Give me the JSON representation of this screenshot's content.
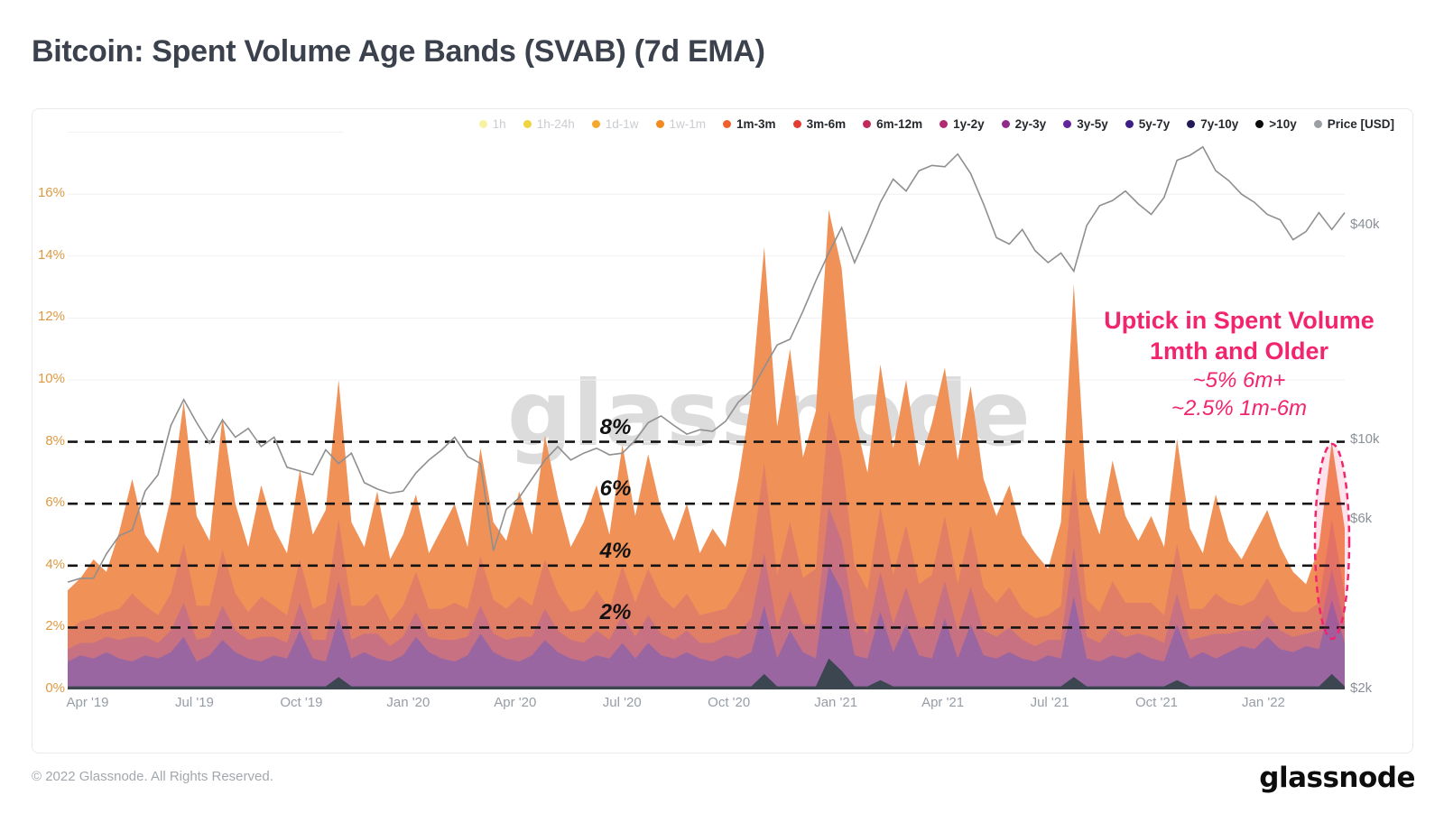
{
  "title": "Bitcoin: Spent Volume Age Bands (SVAB) (7d EMA)",
  "watermark": "glassnode",
  "footer": {
    "copyright": "© 2022 Glassnode. All Rights Reserved.",
    "brand": "glassnode"
  },
  "annotation": {
    "color": "#F2246E",
    "line1": "Uptick in Spent Volume",
    "line2": "1mth and Older",
    "line3": "~5% 6m+",
    "line4": "~2.5% 1m-6m"
  },
  "inline_labels": [
    "8%",
    "6%",
    "4%",
    "2%"
  ],
  "legend": {
    "items": [
      {
        "label": "1h",
        "color": "#F7F2A0",
        "active": false
      },
      {
        "label": "1h-24h",
        "color": "#EFD440",
        "active": false
      },
      {
        "label": "1d-1w",
        "color": "#F4A82C",
        "active": false
      },
      {
        "label": "1w-1m",
        "color": "#F28A20",
        "active": false
      },
      {
        "label": "1m-3m",
        "color": "#EF5F2D",
        "active": true
      },
      {
        "label": "3m-6m",
        "color": "#E23D33",
        "active": true
      },
      {
        "label": "6m-12m",
        "color": "#C12A58",
        "active": true
      },
      {
        "label": "1y-2y",
        "color": "#B02C72",
        "active": true
      },
      {
        "label": "2y-3y",
        "color": "#8F2C87",
        "active": true
      },
      {
        "label": "3y-5y",
        "color": "#66249B",
        "active": true
      },
      {
        "label": "5y-7y",
        "color": "#3D1D86",
        "active": true
      },
      {
        "label": "7y-10y",
        "color": "#201A55",
        "active": true
      },
      {
        "label": ">10y",
        "color": "#0B0B0B",
        "active": true
      },
      {
        "label": "Price [USD]",
        "color": "#9B9FA3",
        "active": true
      }
    ]
  },
  "chart_data": {
    "type": "area",
    "stacked": true,
    "title": "Bitcoin: Spent Volume Age Bands (SVAB) (7d EMA)",
    "x_tick_labels": [
      "Apr '19",
      "Jul '19",
      "Oct '19",
      "Jan '20",
      "Apr '20",
      "Jul '20",
      "Oct '20",
      "Jan '21",
      "Apr '21",
      "Jul '21",
      "Oct '21",
      "Jan '22"
    ],
    "x_range": [
      "Mar 2019",
      "Mar 2022"
    ],
    "samples": 100,
    "y_left": {
      "unit": "%",
      "range": [
        0,
        18
      ],
      "tick_labels": [
        "0%",
        "2%",
        "4%",
        "6%",
        "8%",
        "10%",
        "12%",
        "14%",
        "16%"
      ],
      "grid": true
    },
    "y_right": {
      "unit": "USD",
      "scale": "log",
      "ticks": [
        {
          "label": "$40k",
          "usd_k": 40
        },
        {
          "label": "$10k",
          "usd_k": 10
        },
        {
          "label": "$6k",
          "usd_k": 6
        },
        {
          "label": "$2k",
          "usd_k": 2
        }
      ]
    },
    "reference_lines_pct": [
      8,
      6,
      4,
      2
    ],
    "series": [
      {
        "name": "7y-10y / >10y",
        "color": "#3C4650",
        "values": [
          0.1,
          0.1,
          0.1,
          0.1,
          0.1,
          0.1,
          0.1,
          0.1,
          0.1,
          0.1,
          0.1,
          0.1,
          0.1,
          0.1,
          0.1,
          0.1,
          0.1,
          0.1,
          0.1,
          0.1,
          0.1,
          0.4,
          0.1,
          0.1,
          0.1,
          0.1,
          0.1,
          0.1,
          0.1,
          0.1,
          0.1,
          0.1,
          0.1,
          0.1,
          0.1,
          0.1,
          0.1,
          0.1,
          0.1,
          0.1,
          0.1,
          0.1,
          0.1,
          0.1,
          0.1,
          0.1,
          0.1,
          0.1,
          0.1,
          0.1,
          0.1,
          0.1,
          0.1,
          0.1,
          0.5,
          0.1,
          0.1,
          0.1,
          0.1,
          1.0,
          0.6,
          0.1,
          0.1,
          0.3,
          0.1,
          0.1,
          0.1,
          0.1,
          0.1,
          0.1,
          0.1,
          0.1,
          0.1,
          0.1,
          0.1,
          0.1,
          0.1,
          0.1,
          0.4,
          0.1,
          0.1,
          0.1,
          0.1,
          0.1,
          0.1,
          0.1,
          0.3,
          0.1,
          0.1,
          0.1,
          0.1,
          0.1,
          0.1,
          0.1,
          0.1,
          0.1,
          0.1,
          0.1,
          0.5,
          0.1
        ]
      },
      {
        "name": "1y-2y / 2y-3y / 3y-5y / 5y-7y",
        "color": "#9966A2",
        "values": [
          0.8,
          1.0,
          0.9,
          1.1,
          0.9,
          0.8,
          1.0,
          0.9,
          1.1,
          1.6,
          0.8,
          1.0,
          1.5,
          1.1,
          0.9,
          0.8,
          1.0,
          0.9,
          1.8,
          0.9,
          0.8,
          1.9,
          0.9,
          1.1,
          0.9,
          0.8,
          1.0,
          1.6,
          1.1,
          0.9,
          0.8,
          1.0,
          1.7,
          1.1,
          0.9,
          0.8,
          1.0,
          1.5,
          1.1,
          0.9,
          0.8,
          1.0,
          0.9,
          1.4,
          0.9,
          1.4,
          1.0,
          0.9,
          1.1,
          0.9,
          0.8,
          1.0,
          0.9,
          1.1,
          2.2,
          0.9,
          1.8,
          1.1,
          0.9,
          3.0,
          2.6,
          1.0,
          0.9,
          2.2,
          1.1,
          2.0,
          1.0,
          0.9,
          2.2,
          0.9,
          2.0,
          1.0,
          0.9,
          1.1,
          0.9,
          0.8,
          1.0,
          0.9,
          2.6,
          0.9,
          0.8,
          1.0,
          0.9,
          1.1,
          0.9,
          0.8,
          1.8,
          0.9,
          1.1,
          0.9,
          1.1,
          1.3,
          1.2,
          1.6,
          1.2,
          1.1,
          1.3,
          1.2,
          2.4,
          1.4
        ]
      },
      {
        "name": "6m-12m",
        "color": "#C77183",
        "values": [
          0.4,
          0.4,
          0.5,
          0.5,
          0.6,
          0.8,
          0.6,
          0.5,
          0.7,
          1.1,
          0.7,
          0.6,
          1.1,
          0.7,
          0.6,
          0.8,
          0.6,
          0.5,
          0.9,
          0.6,
          0.7,
          1.2,
          0.6,
          0.6,
          0.8,
          0.5,
          0.6,
          0.8,
          0.5,
          0.6,
          0.7,
          0.6,
          0.9,
          0.6,
          0.6,
          0.8,
          0.6,
          1.0,
          0.7,
          0.6,
          0.6,
          0.8,
          0.6,
          0.9,
          0.7,
          0.9,
          0.7,
          0.6,
          0.7,
          0.5,
          0.6,
          0.6,
          0.8,
          1.1,
          1.7,
          1.0,
          1.3,
          0.9,
          1.1,
          1.9,
          1.6,
          1.1,
          0.8,
          1.3,
          0.9,
          1.2,
          0.9,
          1.0,
          1.2,
          0.9,
          1.2,
          0.8,
          0.7,
          0.8,
          0.6,
          0.5,
          0.5,
          0.6,
          1.6,
          0.7,
          0.6,
          0.9,
          0.7,
          0.6,
          0.7,
          0.6,
          1.0,
          0.6,
          0.5,
          0.8,
          0.6,
          0.5,
          0.6,
          0.7,
          0.6,
          0.5,
          0.4,
          0.6,
          1.0,
          0.6
        ]
      },
      {
        "name": "3m-6m",
        "color": "#E07E66",
        "values": [
          0.6,
          0.7,
          0.8,
          0.8,
          1.0,
          1.4,
          1.0,
          0.9,
          1.2,
          1.9,
          1.1,
          1.0,
          1.8,
          1.2,
          0.9,
          1.3,
          1.0,
          0.9,
          1.4,
          1.0,
          1.2,
          2.0,
          1.1,
          0.9,
          1.3,
          0.8,
          1.0,
          1.3,
          0.9,
          1.0,
          1.2,
          0.9,
          1.6,
          1.1,
          1.0,
          1.3,
          1.0,
          1.6,
          1.2,
          0.9,
          1.1,
          1.3,
          1.0,
          1.6,
          1.1,
          1.5,
          1.2,
          1.0,
          1.2,
          0.9,
          1.0,
          0.9,
          1.4,
          1.9,
          2.9,
          1.7,
          2.2,
          1.5,
          1.8,
          3.1,
          2.7,
          1.8,
          1.4,
          2.1,
          1.6,
          2.0,
          1.4,
          1.7,
          2.1,
          1.5,
          2.0,
          1.4,
          1.1,
          1.3,
          1.0,
          0.9,
          0.8,
          1.1,
          2.6,
          1.2,
          1.0,
          1.5,
          1.1,
          1.0,
          1.1,
          0.9,
          1.6,
          1.0,
          0.9,
          1.3,
          1.0,
          0.8,
          1.0,
          1.2,
          0.9,
          0.8,
          0.7,
          0.9,
          1.6,
          1.0
        ]
      },
      {
        "name": "1m-3m",
        "color": "#F09158",
        "values": [
          1.3,
          1.4,
          1.9,
          1.3,
          2.5,
          3.7,
          2.3,
          2.0,
          3.1,
          4.6,
          2.9,
          2.1,
          4.3,
          2.9,
          2.1,
          3.6,
          2.5,
          2.0,
          2.9,
          2.4,
          3.0,
          4.5,
          2.7,
          1.9,
          3.3,
          2.0,
          2.3,
          2.5,
          1.8,
          2.6,
          3.2,
          2.0,
          3.5,
          2.5,
          2.2,
          3.4,
          2.3,
          4.0,
          3.1,
          2.1,
          2.8,
          3.4,
          2.4,
          3.9,
          2.8,
          3.7,
          2.8,
          2.2,
          2.9,
          2.0,
          2.7,
          2.0,
          3.6,
          5.3,
          7.0,
          4.8,
          5.6,
          3.9,
          5.1,
          6.5,
          6.1,
          4.8,
          3.8,
          4.6,
          4.1,
          4.7,
          3.8,
          4.9,
          4.8,
          4.0,
          4.5,
          3.5,
          2.8,
          3.3,
          2.4,
          2.1,
          1.5,
          2.7,
          5.9,
          3.3,
          2.5,
          3.9,
          2.8,
          2.0,
          2.8,
          2.2,
          3.4,
          2.6,
          1.8,
          3.2,
          2.0,
          1.5,
          2.1,
          2.2,
          1.8,
          1.3,
          0.9,
          1.8,
          2.5,
          2.1
        ]
      }
    ],
    "price": {
      "name": "Price [USD]",
      "color": "#8F8F8F",
      "unit": "USD thousands",
      "values": [
        4.0,
        4.1,
        4.1,
        4.8,
        5.4,
        5.6,
        7.2,
        8.0,
        11.0,
        13.0,
        11.2,
        9.8,
        11.4,
        10.2,
        10.8,
        9.6,
        10.2,
        8.4,
        8.2,
        8.0,
        9.4,
        8.6,
        9.2,
        7.6,
        7.3,
        7.1,
        7.2,
        8.1,
        8.8,
        9.4,
        10.2,
        9.0,
        8.6,
        4.9,
        6.4,
        6.9,
        7.8,
        8.8,
        9.6,
        8.8,
        9.2,
        9.5,
        9.1,
        9.2,
        10.0,
        11.2,
        11.7,
        11.0,
        10.4,
        10.7,
        10.6,
        11.3,
        12.8,
        13.8,
        16.0,
        18.5,
        19.2,
        23.0,
        28.0,
        33.5,
        39.5,
        31.5,
        38.0,
        46.5,
        54.0,
        50.0,
        57.0,
        59.0,
        58.5,
        63.5,
        56.0,
        46.0,
        37.0,
        35.5,
        39.0,
        34.0,
        31.5,
        33.5,
        29.8,
        40.0,
        45.5,
        47.0,
        50.0,
        46.0,
        43.0,
        48.0,
        61.0,
        63.0,
        66.5,
        57.0,
        53.5,
        49.0,
        46.5,
        43.0,
        41.5,
        36.5,
        38.5,
        43.5,
        39.0,
        43.5
      ]
    }
  }
}
